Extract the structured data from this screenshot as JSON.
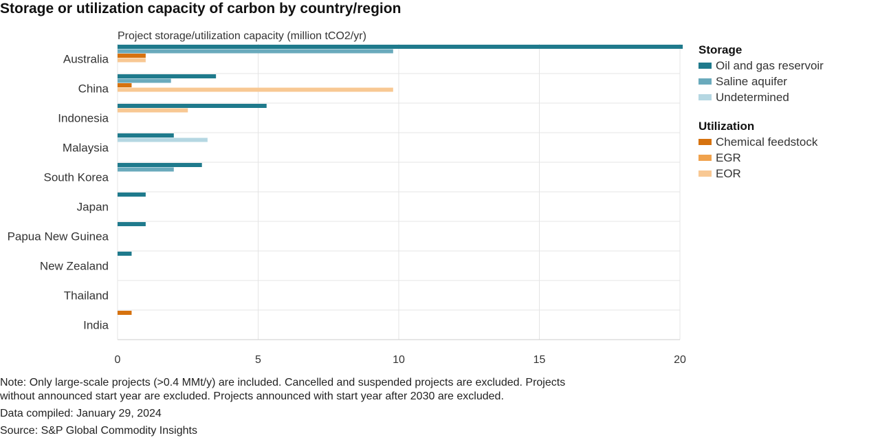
{
  "title": "Storage or utilization capacity of carbon by country/region",
  "footer": {
    "note_line1": "Note: Only large-scale projects (>0.4 MMt/y) are included. Cancelled and suspended projects are excluded. Projects",
    "note_line2": "without announced start year are excluded. Projects announced with start year after 2030 are excluded.",
    "compiled": "Data compiled: January 29, 2024",
    "source": "Source: S&P Global Commodity Insights"
  },
  "chart_data": {
    "type": "bar",
    "orientation": "horizontal",
    "title": "Storage or utilization capacity of carbon by country/region",
    "xlabel": "Project storage/utilization capacity (million tCO2/yr)",
    "ylabel": "",
    "xlim": [
      0,
      20
    ],
    "xticks": [
      "0",
      "5",
      "10",
      "15",
      "20"
    ],
    "grid": "horizontal separators between countries, vertical gridlines at ticks",
    "legend_position": "right",
    "categories": [
      "Australia",
      "China",
      "Indonesia",
      "Malaysia",
      "South Korea",
      "Japan",
      "Papua New Guinea",
      "New Zealand",
      "Thailand",
      "India"
    ],
    "legend": [
      {
        "heading": "Storage",
        "items": [
          "Oil and gas reservoir",
          "Saline aquifer",
          "Undetermined"
        ]
      },
      {
        "heading": "Utilization",
        "items": [
          "Chemical feedstock",
          "EGR",
          "EOR"
        ]
      }
    ],
    "series": [
      {
        "name": "Oil and gas reservoir",
        "color": "#1f7a8c",
        "values": [
          20.1,
          3.5,
          5.3,
          2.0,
          3.0,
          1.0,
          1.0,
          0.5,
          0,
          0
        ]
      },
      {
        "name": "Saline aquifer",
        "color": "#6aaabc",
        "values": [
          9.8,
          1.9,
          0,
          0,
          2.0,
          0,
          0,
          0,
          0,
          0
        ]
      },
      {
        "name": "Undetermined",
        "color": "#b5d7e2",
        "values": [
          0,
          0,
          0,
          3.2,
          0,
          0,
          0,
          0,
          0,
          0
        ]
      },
      {
        "name": "Chemical feedstock",
        "color": "#d6720f",
        "values": [
          1.0,
          0.5,
          0,
          0,
          0,
          0,
          0,
          0,
          0,
          0.5
        ]
      },
      {
        "name": "EGR",
        "color": "#f0a24d",
        "values": [
          0,
          0,
          0,
          0,
          0,
          0,
          0,
          0,
          0,
          0
        ]
      },
      {
        "name": "EOR",
        "color": "#f8c893",
        "values": [
          1.0,
          9.8,
          2.5,
          0,
          0,
          0,
          0,
          0,
          0,
          0
        ]
      }
    ]
  }
}
